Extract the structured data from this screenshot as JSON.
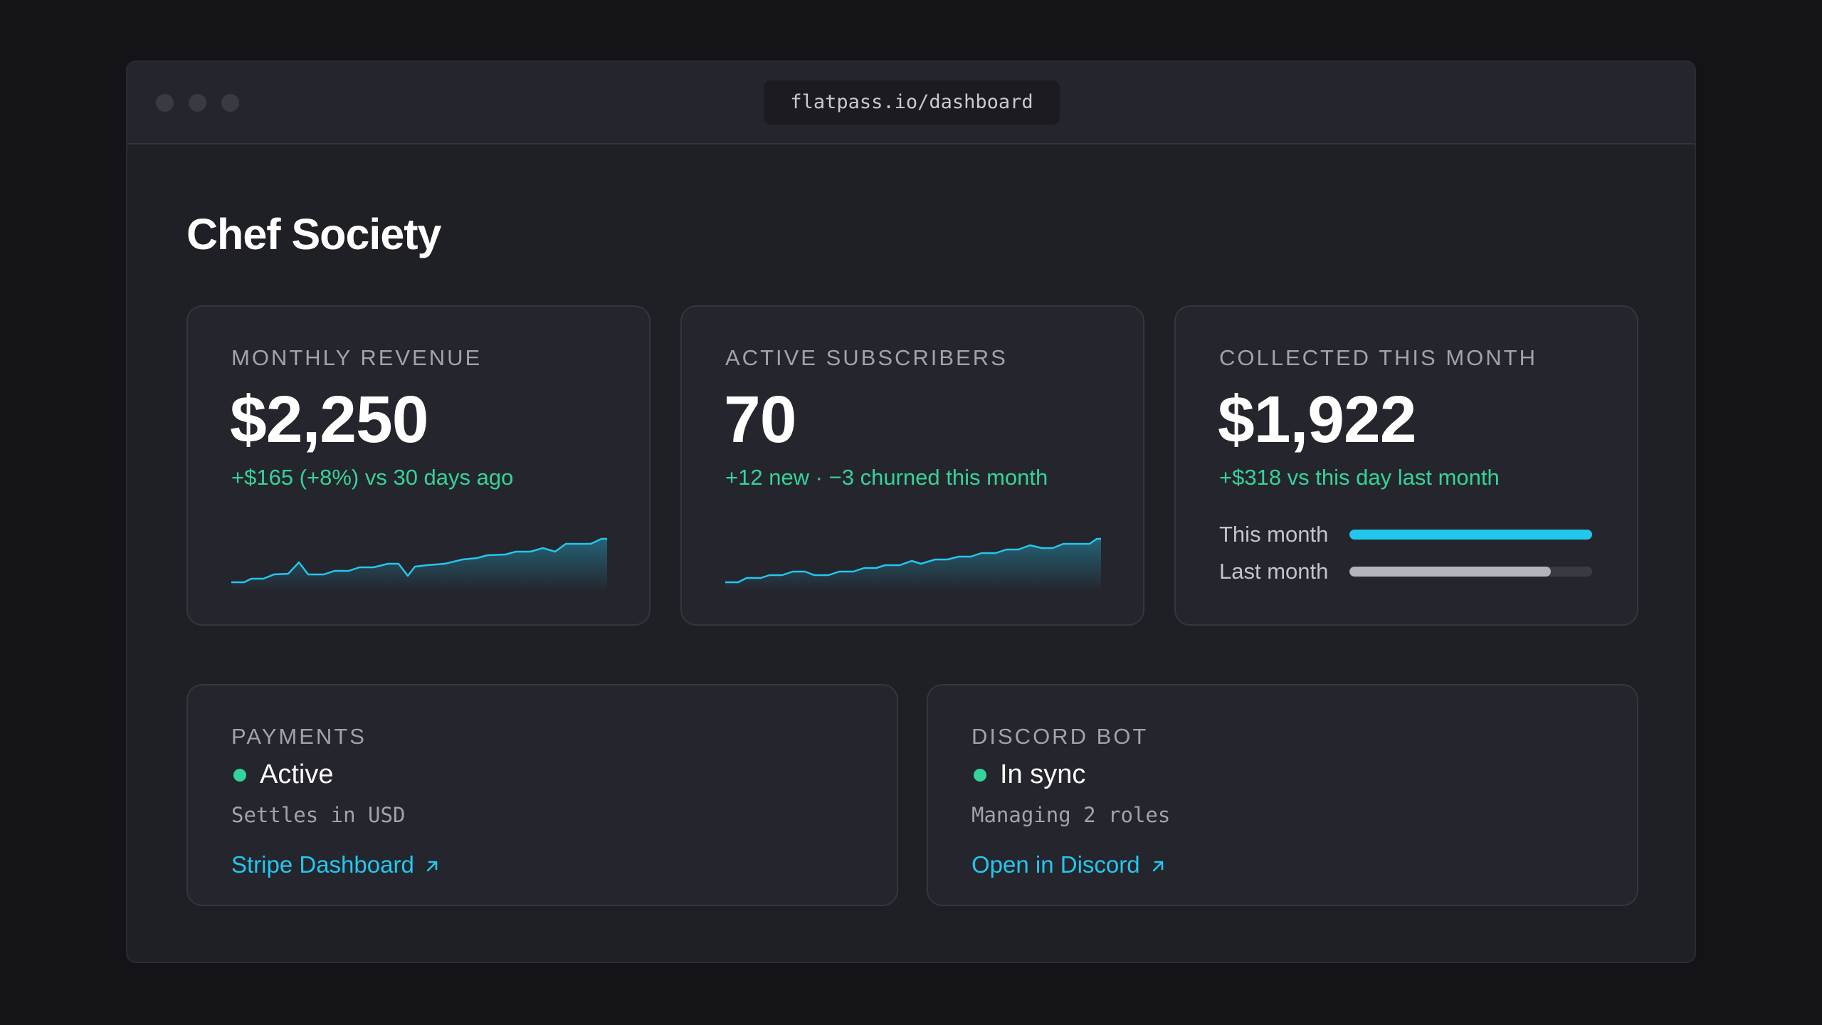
{
  "browser": {
    "url": "flatpass.io/dashboard"
  },
  "page": {
    "title": "Chef Society"
  },
  "cards": {
    "revenue": {
      "label": "MONTHLY REVENUE",
      "value": "$2,250",
      "delta": "+$165 (+8%) vs 30 days ago"
    },
    "subscribers": {
      "label": "ACTIVE SUBSCRIBERS",
      "value": "70",
      "delta": "+12 new · −3 churned this month"
    },
    "collected": {
      "label": "COLLECTED THIS MONTH",
      "value": "$1,922",
      "delta": "+$318 vs this day last month",
      "bars": [
        {
          "label": "This month",
          "fraction": 1.0,
          "color": "#22c7ee"
        },
        {
          "label": "Last month",
          "fraction": 0.83,
          "color": "#b3b3bb"
        }
      ]
    }
  },
  "status": {
    "payments": {
      "label": "PAYMENTS",
      "state": "Active",
      "detail": "Settles in USD",
      "link_label": "Stripe Dashboard"
    },
    "discord": {
      "label": "DISCORD BOT",
      "state": "In sync",
      "detail": "Managing 2 roles",
      "link_label": "Open in Discord"
    }
  },
  "colors": {
    "accent": "#22c7ee",
    "positive": "#34d399",
    "card_background": "#25252d",
    "window_background": "#1f1f26"
  },
  "icons": {
    "external_link": "arrow-up-right-icon",
    "status_indicator": "status-dot-icon"
  }
}
